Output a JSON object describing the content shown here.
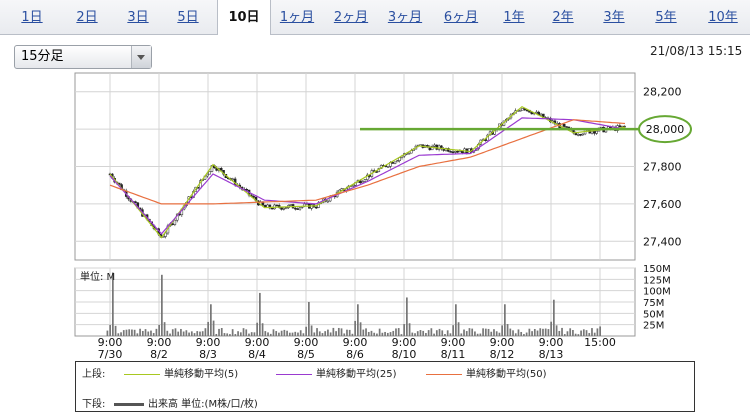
{
  "tabs": [
    {
      "label": "1日"
    },
    {
      "label": "2日"
    },
    {
      "label": "3日"
    },
    {
      "label": "5日"
    },
    {
      "label": "10日",
      "active": true
    },
    {
      "label": "1ヶ月"
    },
    {
      "label": "2ヶ月"
    },
    {
      "label": "3ヶ月"
    },
    {
      "label": "6ヶ月"
    },
    {
      "label": "1年"
    },
    {
      "label": "2年"
    },
    {
      "label": "3年"
    },
    {
      "label": "5年"
    },
    {
      "label": "10年"
    }
  ],
  "interval_select": {
    "value": "15分足"
  },
  "timestamp": "21/08/13 15:15",
  "chart_data": [
    {
      "type": "line",
      "title": "",
      "ylim": [
        27300,
        28300
      ],
      "y_ticks": [
        "28,200",
        "28,000",
        "27,800",
        "27,600",
        "27,400"
      ],
      "x_ticks": [
        {
          "time": "9:00",
          "date": "7/30"
        },
        {
          "time": "9:00",
          "date": "8/2"
        },
        {
          "time": "9:00",
          "date": "8/3"
        },
        {
          "time": "9:00",
          "date": "8/4"
        },
        {
          "time": "9:00",
          "date": "8/5"
        },
        {
          "time": "9:00",
          "date": "8/6"
        },
        {
          "time": "9:00",
          "date": "8/10"
        },
        {
          "time": "9:00",
          "date": "8/11"
        },
        {
          "time": "9:00",
          "date": "8/12"
        },
        {
          "time": "9:00",
          "date": "8/13"
        },
        {
          "time": "15:00",
          "date": ""
        }
      ],
      "series": [
        {
          "name": "単純移動平均(5)",
          "color": "#a8c820",
          "x": [
            0,
            10,
            20,
            30,
            40,
            50,
            60,
            70,
            80,
            90,
            100
          ],
          "values": [
            27760,
            27420,
            27810,
            27580,
            27590,
            27750,
            27910,
            27880,
            28120,
            27980,
            28010
          ]
        },
        {
          "name": "単純移動平均(25)",
          "color": "#9a3ad0",
          "x": [
            0,
            10,
            20,
            30,
            40,
            50,
            60,
            70,
            80,
            90,
            100
          ],
          "values": [
            27750,
            27440,
            27760,
            27620,
            27600,
            27720,
            27860,
            27870,
            28060,
            28050,
            28000
          ]
        },
        {
          "name": "単純移動平均(50)",
          "color": "#e87040",
          "x": [
            0,
            10,
            20,
            30,
            40,
            50,
            60,
            70,
            80,
            90,
            100
          ],
          "values": [
            27700,
            27600,
            27600,
            27610,
            27620,
            27700,
            27800,
            27850,
            27950,
            28050,
            28030
          ]
        }
      ],
      "annotation": {
        "label": "28,000",
        "value": 28000,
        "color": "#66a833"
      }
    },
    {
      "type": "bar",
      "title": "単位: M",
      "ylim": [
        0,
        150
      ],
      "y_ticks": [
        "150M",
        "125M",
        "100M",
        "75M",
        "50M",
        "25M"
      ],
      "series_name": "出来高 単位:(M株/口/枚)",
      "session_open_volumes": [
        140,
        135,
        70,
        95,
        75,
        70,
        85,
        70,
        70,
        80,
        60,
        70
      ]
    }
  ],
  "legend": {
    "upper_label": "上段:",
    "lower_label": "下段:",
    "items": [
      {
        "label": "単純移動平均(5)",
        "color": "#a8c820"
      },
      {
        "label": "単純移動平均(25)",
        "color": "#9a3ad0"
      },
      {
        "label": "単純移動平均(50)",
        "color": "#e87040"
      }
    ],
    "volume_label": "出来高 単位:(M株/口/枚)"
  }
}
